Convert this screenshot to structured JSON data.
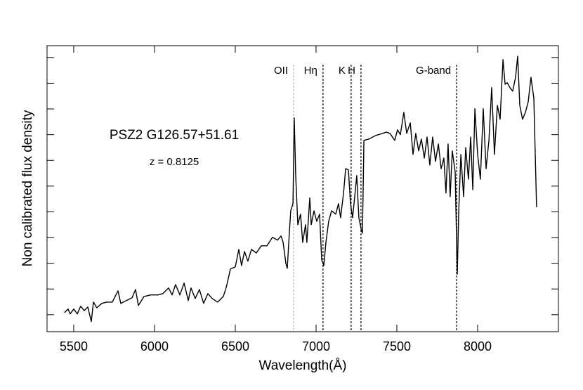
{
  "chart_data": {
    "type": "line",
    "xlabel": "Wavelength(Å)",
    "ylabel": "Non calibrated flux density",
    "annotations_text": [
      "PSZ2 G126.57+51.61",
      "z = 0.8125"
    ],
    "lines": [
      {
        "label": "OII",
        "x": 6861,
        "color": "#bbbbbb"
      },
      {
        "label": "Hη",
        "x": 7043,
        "color": "#000000"
      },
      {
        "label": "K",
        "x": 7217,
        "color": "#000000"
      },
      {
        "label": "H",
        "x": 7278,
        "color": "#000000"
      },
      {
        "label": "G-band",
        "x": 7870,
        "color": "#000000"
      }
    ],
    "xlim": [
      5335,
      8500
    ],
    "ylim": [
      -0.66,
      10.46
    ],
    "xticks": [
      5500,
      6000,
      6500,
      7000,
      7500,
      8000
    ],
    "yticks": [
      0,
      1,
      2,
      3,
      4,
      5,
      6,
      7,
      8,
      9,
      10
    ],
    "series": [
      {
        "color": "#000000",
        "x": [
          5443,
          5465,
          5478,
          5500,
          5522,
          5543,
          5565,
          5587,
          5609,
          5622,
          5643,
          5674,
          5704,
          5739,
          5774,
          5791,
          5826,
          5861,
          5883,
          5900,
          5935,
          5978,
          6022,
          6052,
          6087,
          6109,
          6130,
          6157,
          6183,
          6209,
          6226,
          6252,
          6278,
          6304,
          6330,
          6357,
          6391,
          6426,
          6443,
          6470,
          6500,
          6522,
          6539,
          6557,
          6578,
          6600,
          6630,
          6661,
          6696,
          6730,
          6761,
          6783,
          6796,
          6813,
          6822,
          6835,
          6843,
          6857,
          6865,
          6874,
          6887,
          6904,
          6917,
          6935,
          6943,
          6961,
          6970,
          6987,
          7004,
          7022,
          7035,
          7048,
          7061,
          7078,
          7096,
          7122,
          7139,
          7152,
          7170,
          7183,
          7200,
          7213,
          7226,
          7239,
          7252,
          7265,
          7278,
          7287,
          7296,
          7326,
          7370,
          7413,
          7435,
          7457,
          7487,
          7504,
          7522,
          7543,
          7561,
          7583,
          7600,
          7617,
          7635,
          7652,
          7670,
          7687,
          7704,
          7722,
          7739,
          7757,
          7774,
          7791,
          7804,
          7817,
          7830,
          7843,
          7861,
          7874,
          7883,
          7896,
          7913,
          7926,
          7943,
          7957,
          7970,
          7983,
          8000,
          8017,
          8035,
          8052,
          8070,
          8087,
          8104,
          8122,
          8139,
          8157,
          8170,
          8183,
          8200,
          8217,
          8235,
          8248,
          8261,
          8278,
          8296,
          8313,
          8330,
          8348,
          8365
        ],
        "values": [
          0.08,
          0.22,
          0.03,
          0.22,
          0.03,
          0.33,
          0.16,
          0.3,
          -0.27,
          0.49,
          0.27,
          0.44,
          0.49,
          0.49,
          0.93,
          0.44,
          0.55,
          0.66,
          0.98,
          0.36,
          0.71,
          0.77,
          0.77,
          0.82,
          1.04,
          0.77,
          1.17,
          0.77,
          1.23,
          0.55,
          1.04,
          0.63,
          0.98,
          0.44,
          0.82,
          0.63,
          0.49,
          0.71,
          1.04,
          1.78,
          1.86,
          2.54,
          1.91,
          2.46,
          2.08,
          2.54,
          2.4,
          2.68,
          2.68,
          3.01,
          2.9,
          3.06,
          2.81,
          1.99,
          1.8,
          3.22,
          4.04,
          4.32,
          7.65,
          5.41,
          3.5,
          3.91,
          2.81,
          3.5,
          2.81,
          4.54,
          3.5,
          4.04,
          3.63,
          3.91,
          2.13,
          1.91,
          2.81,
          3.63,
          4.04,
          3.91,
          4.32,
          3.77,
          4.73,
          5.68,
          5.63,
          4.32,
          3.77,
          4.59,
          5.41,
          3.77,
          3.36,
          3.17,
          6.78,
          6.83,
          6.97,
          7.05,
          7.1,
          7.05,
          6.78,
          7.19,
          7.0,
          7.87,
          7.05,
          7.46,
          6.23,
          7.05,
          6.37,
          6.83,
          6.09,
          6.91,
          5.82,
          6.91,
          5.96,
          6.64,
          5.68,
          6.09,
          4.73,
          6.64,
          4.59,
          6.37,
          5.55,
          1.58,
          4.04,
          6.23,
          4.59,
          6.5,
          5.27,
          6.91,
          4.86,
          8.01,
          6.23,
          5.27,
          8.01,
          5.68,
          6.78,
          8.83,
          6.23,
          8.14,
          7.6,
          9.92,
          8.96,
          9.02,
          8.83,
          8.69,
          9.23,
          10.05,
          8.14,
          7.6,
          7.87,
          8.28,
          9.23,
          8.42,
          4.18
        ]
      }
    ]
  }
}
